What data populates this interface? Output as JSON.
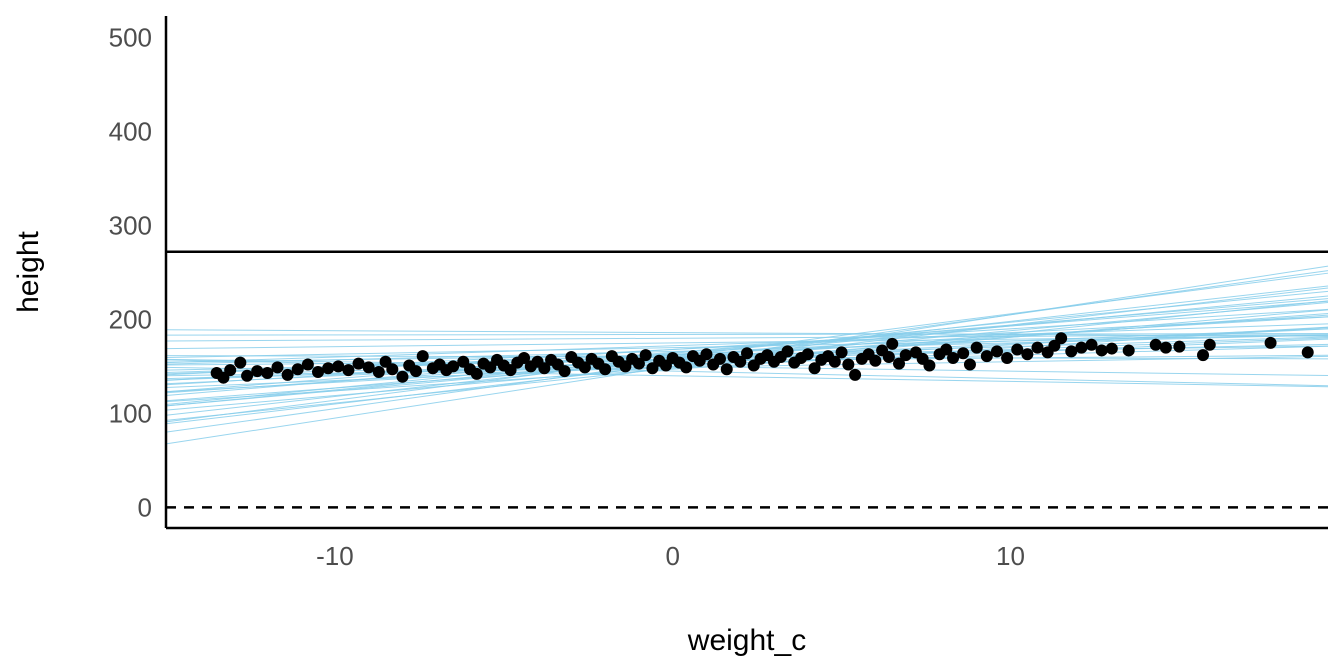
{
  "chart_data": {
    "type": "scatter",
    "title": "",
    "xlabel": "weight_c",
    "ylabel": "height",
    "xlim": [
      -15.0,
      19.4
    ],
    "ylim": [
      -22,
      523
    ],
    "x_ticks": [
      -10,
      0,
      10
    ],
    "y_ticks": [
      0,
      100,
      200,
      300,
      400,
      500
    ],
    "x_tick_labels": [
      "-10",
      "0",
      "10"
    ],
    "y_tick_labels": [
      "0",
      "100",
      "200",
      "300",
      "400",
      "500"
    ],
    "grid": false,
    "colors": {
      "points": "#000000",
      "prior_lines": "#87ceeb",
      "reference_lines": "#000000"
    },
    "reference_lines": [
      {
        "y": 0,
        "style": "dashed"
      },
      {
        "y": 272,
        "style": "solid"
      }
    ],
    "prior_lines": [
      {
        "a": 150,
        "b": 5.5
      },
      {
        "a": 155,
        "b": 5.0
      },
      {
        "a": 160,
        "b": 4.6
      },
      {
        "a": 152,
        "b": 4.2
      },
      {
        "a": 158,
        "b": 4.0
      },
      {
        "a": 148,
        "b": 3.7
      },
      {
        "a": 162,
        "b": 3.5
      },
      {
        "a": 156,
        "b": 3.2
      },
      {
        "a": 150,
        "b": 3.1
      },
      {
        "a": 165,
        "b": 2.8
      },
      {
        "a": 154,
        "b": 2.7
      },
      {
        "a": 158,
        "b": 2.4
      },
      {
        "a": 147,
        "b": 2.3
      },
      {
        "a": 162,
        "b": 2.1
      },
      {
        "a": 153,
        "b": 2.0
      },
      {
        "a": 168,
        "b": 1.8
      },
      {
        "a": 157,
        "b": 1.7
      },
      {
        "a": 150,
        "b": 1.5
      },
      {
        "a": 163,
        "b": 1.4
      },
      {
        "a": 155,
        "b": 1.3
      },
      {
        "a": 160,
        "b": 1.1
      },
      {
        "a": 152,
        "b": 1.0
      },
      {
        "a": 166,
        "b": 0.9
      },
      {
        "a": 158,
        "b": 0.8
      },
      {
        "a": 170,
        "b": 0.7
      },
      {
        "a": 149,
        "b": 0.6
      },
      {
        "a": 162,
        "b": 0.5
      },
      {
        "a": 175,
        "b": 0.4
      },
      {
        "a": 156,
        "b": 0.3
      },
      {
        "a": 180,
        "b": 0.2
      },
      {
        "a": 184,
        "b": 0.05
      },
      {
        "a": 186,
        "b": -0.2
      },
      {
        "a": 160,
        "b": -0.1
      },
      {
        "a": 150,
        "b": -0.5
      },
      {
        "a": 145,
        "b": -0.8
      },
      {
        "a": 140,
        "b": -0.6
      },
      {
        "a": 172,
        "b": 1.2
      },
      {
        "a": 168,
        "b": 2.2
      },
      {
        "a": 164,
        "b": 3.0
      },
      {
        "a": 159,
        "b": 3.4
      }
    ],
    "points": [
      {
        "x": -13.5,
        "y": 143
      },
      {
        "x": -13.3,
        "y": 138
      },
      {
        "x": -13.1,
        "y": 146
      },
      {
        "x": -12.8,
        "y": 154
      },
      {
        "x": -12.6,
        "y": 140
      },
      {
        "x": -12.3,
        "y": 145
      },
      {
        "x": -12.0,
        "y": 143
      },
      {
        "x": -11.7,
        "y": 149
      },
      {
        "x": -11.4,
        "y": 141
      },
      {
        "x": -11.1,
        "y": 147
      },
      {
        "x": -10.8,
        "y": 152
      },
      {
        "x": -10.5,
        "y": 144
      },
      {
        "x": -10.2,
        "y": 148
      },
      {
        "x": -9.9,
        "y": 150
      },
      {
        "x": -9.6,
        "y": 146
      },
      {
        "x": -9.3,
        "y": 153
      },
      {
        "x": -9.0,
        "y": 149
      },
      {
        "x": -8.7,
        "y": 144
      },
      {
        "x": -8.5,
        "y": 155
      },
      {
        "x": -8.3,
        "y": 147
      },
      {
        "x": -8.0,
        "y": 139
      },
      {
        "x": -7.8,
        "y": 151
      },
      {
        "x": -7.6,
        "y": 145
      },
      {
        "x": -7.4,
        "y": 161
      },
      {
        "x": -7.1,
        "y": 148
      },
      {
        "x": -6.9,
        "y": 152
      },
      {
        "x": -6.7,
        "y": 146
      },
      {
        "x": -6.5,
        "y": 150
      },
      {
        "x": -6.2,
        "y": 155
      },
      {
        "x": -6.0,
        "y": 147
      },
      {
        "x": -5.8,
        "y": 142
      },
      {
        "x": -5.6,
        "y": 153
      },
      {
        "x": -5.4,
        "y": 149
      },
      {
        "x": -5.2,
        "y": 157
      },
      {
        "x": -5.0,
        "y": 151
      },
      {
        "x": -4.8,
        "y": 146
      },
      {
        "x": -4.6,
        "y": 154
      },
      {
        "x": -4.4,
        "y": 159
      },
      {
        "x": -4.2,
        "y": 150
      },
      {
        "x": -4.0,
        "y": 155
      },
      {
        "x": -3.8,
        "y": 148
      },
      {
        "x": -3.6,
        "y": 157
      },
      {
        "x": -3.4,
        "y": 152
      },
      {
        "x": -3.2,
        "y": 145
      },
      {
        "x": -3.0,
        "y": 160
      },
      {
        "x": -2.8,
        "y": 154
      },
      {
        "x": -2.6,
        "y": 149
      },
      {
        "x": -2.4,
        "y": 158
      },
      {
        "x": -2.2,
        "y": 153
      },
      {
        "x": -2.0,
        "y": 147
      },
      {
        "x": -1.8,
        "y": 161
      },
      {
        "x": -1.6,
        "y": 155
      },
      {
        "x": -1.4,
        "y": 150
      },
      {
        "x": -1.2,
        "y": 158
      },
      {
        "x": -1.0,
        "y": 153
      },
      {
        "x": -0.8,
        "y": 162
      },
      {
        "x": -0.6,
        "y": 148
      },
      {
        "x": -0.4,
        "y": 156
      },
      {
        "x": -0.2,
        "y": 151
      },
      {
        "x": 0.0,
        "y": 159
      },
      {
        "x": 0.2,
        "y": 154
      },
      {
        "x": 0.4,
        "y": 149
      },
      {
        "x": 0.6,
        "y": 161
      },
      {
        "x": 0.8,
        "y": 156
      },
      {
        "x": 1.0,
        "y": 163
      },
      {
        "x": 1.2,
        "y": 152
      },
      {
        "x": 1.4,
        "y": 158
      },
      {
        "x": 1.6,
        "y": 147
      },
      {
        "x": 1.8,
        "y": 160
      },
      {
        "x": 2.0,
        "y": 155
      },
      {
        "x": 2.2,
        "y": 164
      },
      {
        "x": 2.4,
        "y": 151
      },
      {
        "x": 2.6,
        "y": 158
      },
      {
        "x": 2.8,
        "y": 162
      },
      {
        "x": 3.0,
        "y": 155
      },
      {
        "x": 3.2,
        "y": 160
      },
      {
        "x": 3.4,
        "y": 166
      },
      {
        "x": 3.6,
        "y": 154
      },
      {
        "x": 3.8,
        "y": 159
      },
      {
        "x": 4.0,
        "y": 163
      },
      {
        "x": 4.2,
        "y": 148
      },
      {
        "x": 4.4,
        "y": 157
      },
      {
        "x": 4.6,
        "y": 161
      },
      {
        "x": 4.8,
        "y": 155
      },
      {
        "x": 5.0,
        "y": 165
      },
      {
        "x": 5.2,
        "y": 152
      },
      {
        "x": 5.4,
        "y": 141
      },
      {
        "x": 5.6,
        "y": 158
      },
      {
        "x": 5.8,
        "y": 163
      },
      {
        "x": 6.0,
        "y": 156
      },
      {
        "x": 6.2,
        "y": 167
      },
      {
        "x": 6.4,
        "y": 160
      },
      {
        "x": 6.5,
        "y": 174
      },
      {
        "x": 6.7,
        "y": 153
      },
      {
        "x": 6.9,
        "y": 162
      },
      {
        "x": 7.2,
        "y": 165
      },
      {
        "x": 7.4,
        "y": 158
      },
      {
        "x": 7.6,
        "y": 151
      },
      {
        "x": 7.9,
        "y": 163
      },
      {
        "x": 8.1,
        "y": 168
      },
      {
        "x": 8.3,
        "y": 159
      },
      {
        "x": 8.6,
        "y": 164
      },
      {
        "x": 8.8,
        "y": 152
      },
      {
        "x": 9.0,
        "y": 170
      },
      {
        "x": 9.3,
        "y": 161
      },
      {
        "x": 9.6,
        "y": 166
      },
      {
        "x": 9.9,
        "y": 159
      },
      {
        "x": 10.2,
        "y": 168
      },
      {
        "x": 10.5,
        "y": 163
      },
      {
        "x": 10.8,
        "y": 170
      },
      {
        "x": 11.1,
        "y": 165
      },
      {
        "x": 11.3,
        "y": 172
      },
      {
        "x": 11.5,
        "y": 180
      },
      {
        "x": 11.8,
        "y": 166
      },
      {
        "x": 12.1,
        "y": 170
      },
      {
        "x": 12.4,
        "y": 173
      },
      {
        "x": 12.7,
        "y": 167
      },
      {
        "x": 13.0,
        "y": 169
      },
      {
        "x": 13.5,
        "y": 167
      },
      {
        "x": 14.3,
        "y": 173
      },
      {
        "x": 14.6,
        "y": 170
      },
      {
        "x": 15.0,
        "y": 171
      },
      {
        "x": 15.7,
        "y": 162
      },
      {
        "x": 15.9,
        "y": 173
      },
      {
        "x": 17.7,
        "y": 175
      },
      {
        "x": 18.8,
        "y": 165
      }
    ]
  }
}
